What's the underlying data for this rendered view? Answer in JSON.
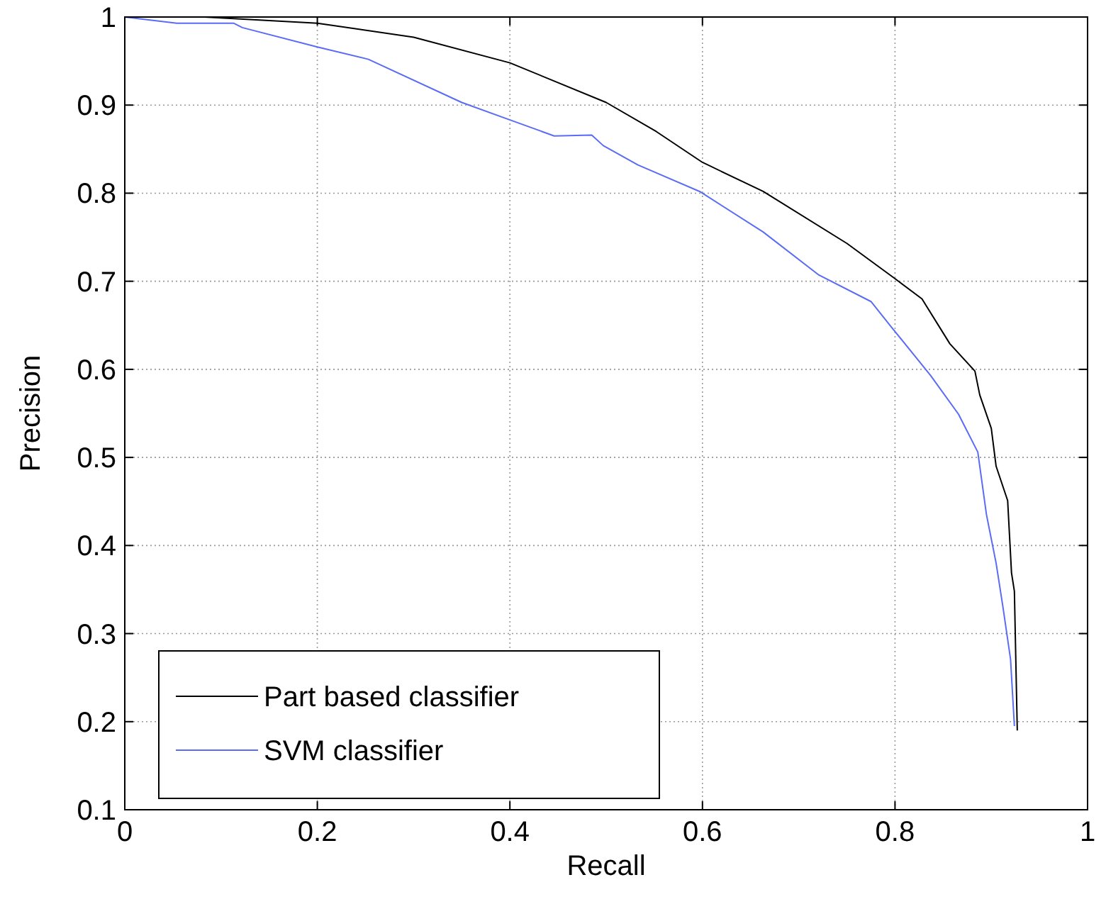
{
  "chart_data": {
    "type": "line",
    "xlabel": "Recall",
    "ylabel": "Precision",
    "xlim": [
      0,
      1
    ],
    "xticks": [
      0,
      0.2,
      0.4,
      0.6,
      0.8,
      1
    ],
    "ylim": [
      0.1,
      1
    ],
    "yticks": [
      0.1,
      0.2,
      0.3,
      0.4,
      0.5,
      0.6,
      0.7,
      0.8,
      0.9,
      1
    ],
    "grid": true,
    "legend": "bottom left",
    "line_style": "solid",
    "marker": "none",
    "series": [
      {
        "name": "Part based classifier",
        "color": "#000000",
        "x": [
          0,
          0.083,
          0.2,
          0.3,
          0.4,
          0.5,
          0.552,
          0.6,
          0.663,
          0.75,
          0.8,
          0.828,
          0.857,
          0.883,
          0.888,
          0.9,
          0.905,
          0.917,
          0.921,
          0.924,
          0.927
        ],
        "values": [
          1,
          1,
          0.993,
          0.977,
          0.948,
          0.903,
          0.87,
          0.835,
          0.802,
          0.743,
          0.703,
          0.68,
          0.629,
          0.598,
          0.571,
          0.533,
          0.49,
          0.451,
          0.369,
          0.348,
          0.19
        ]
      },
      {
        "name": "SVM classifier",
        "color": "#5a6cf5",
        "x": [
          0,
          0.054,
          0.113,
          0.122,
          0.2,
          0.253,
          0.35,
          0.398,
          0.446,
          0.485,
          0.497,
          0.533,
          0.597,
          0.663,
          0.721,
          0.775,
          0.797,
          0.837,
          0.866,
          0.886,
          0.895,
          0.905,
          0.912,
          0.92,
          0.924
        ],
        "values": [
          1,
          0.993,
          0.993,
          0.988,
          0.966,
          0.952,
          0.903,
          0.884,
          0.865,
          0.866,
          0.854,
          0.832,
          0.802,
          0.756,
          0.707,
          0.677,
          0.647,
          0.593,
          0.549,
          0.506,
          0.435,
          0.38,
          0.331,
          0.271,
          0.195
        ]
      }
    ]
  }
}
